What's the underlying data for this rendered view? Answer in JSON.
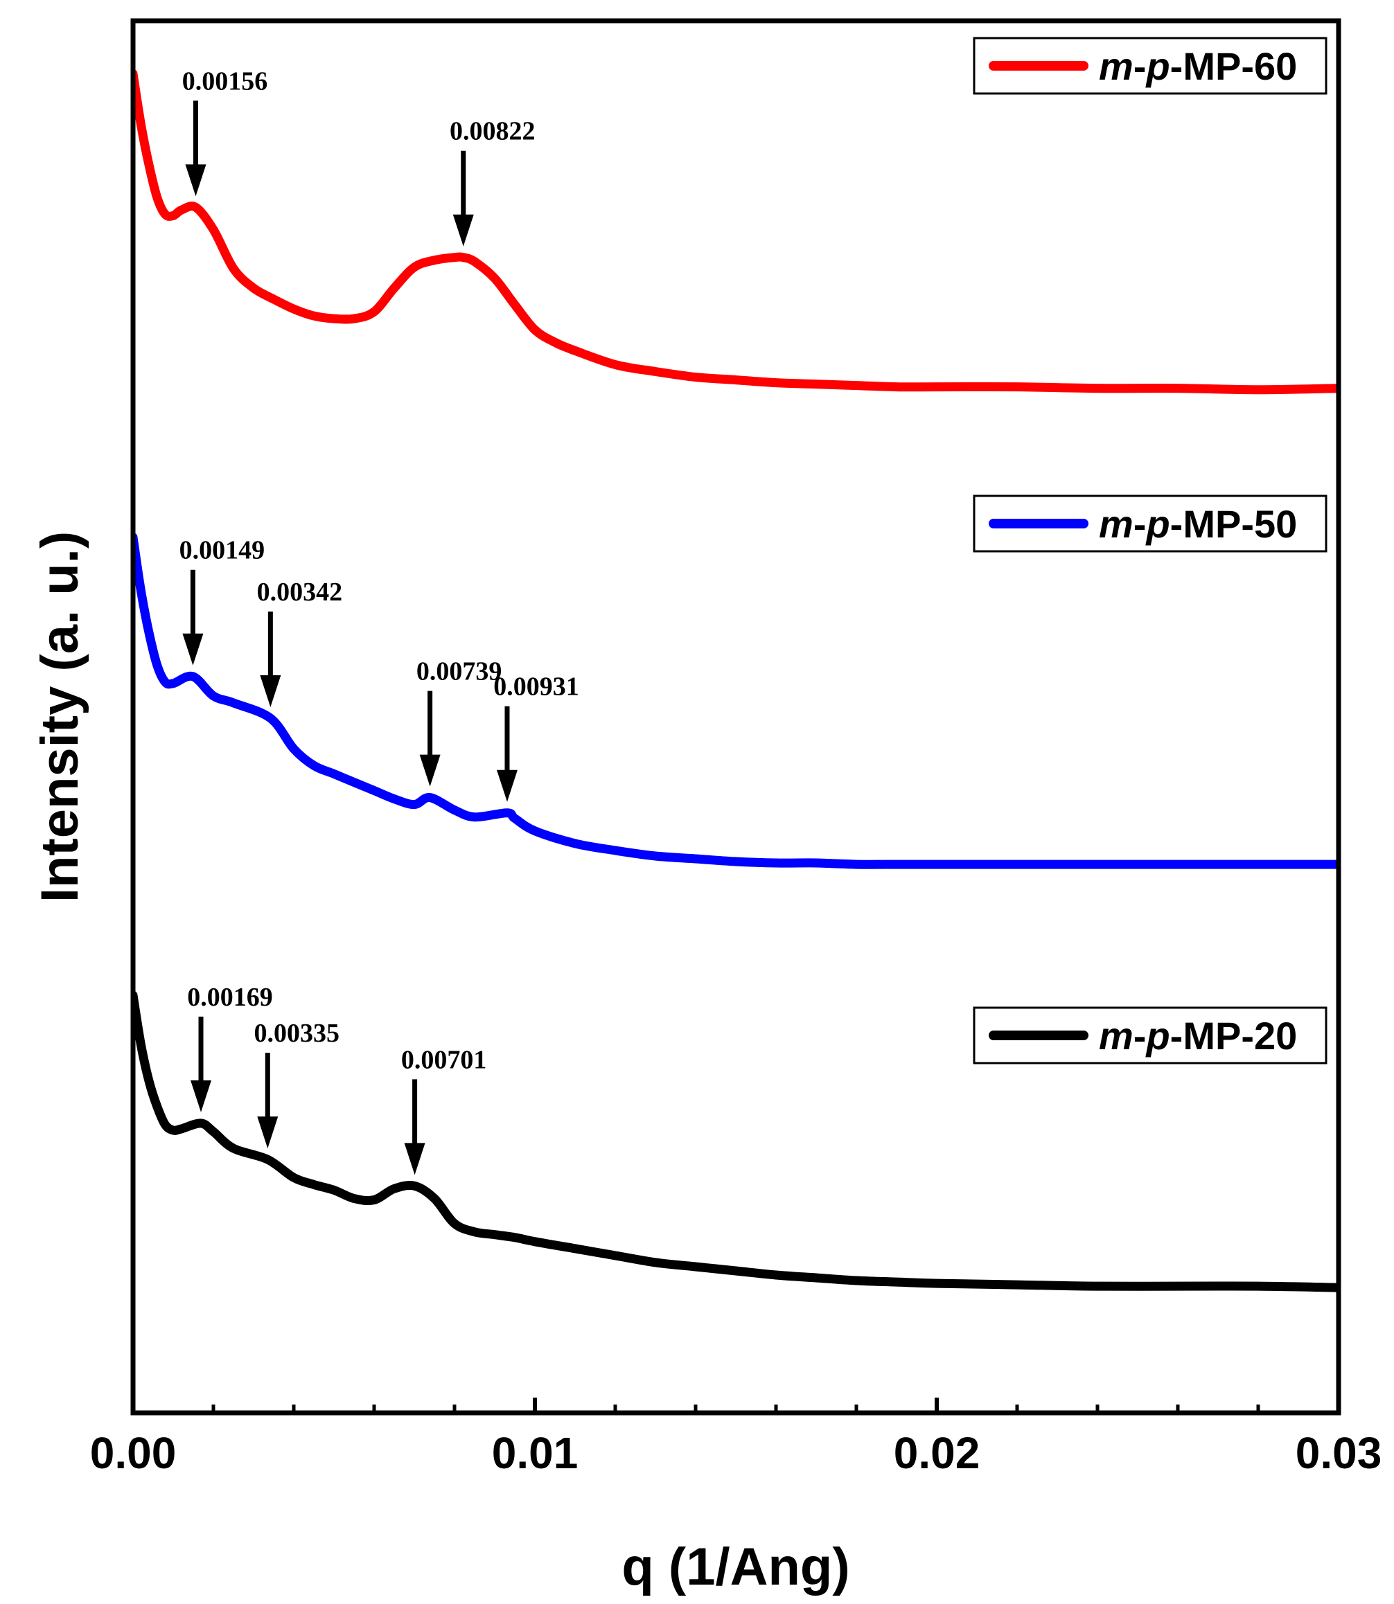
{
  "chart_data": {
    "type": "line",
    "title": "",
    "xlabel": "q (1/Ang)",
    "ylabel": "Intensity (a. u.)",
    "xlim": [
      0,
      0.03
    ],
    "ylim": [
      0,
      100
    ],
    "x_ticks": [
      "0.00",
      "0.01",
      "0.02",
      "0.03"
    ],
    "grid": false,
    "legend_position": "top-right (one per curve)",
    "series": [
      {
        "name": "m-p-MP-60",
        "legend": {
          "prefix_italic_1": "m",
          "dash_1": "-",
          "prefix_italic_2": "p",
          "suffix": "-MP-60"
        },
        "color": "#ff0000",
        "x": [
          0,
          0.0002,
          0.0004,
          0.0006,
          0.0008,
          0.001,
          0.0012,
          0.00156,
          0.002,
          0.0025,
          0.003,
          0.0035,
          0.004,
          0.0045,
          0.005,
          0.0055,
          0.006,
          0.0065,
          0.007,
          0.0075,
          0.008,
          0.00822,
          0.0085,
          0.009,
          0.0095,
          0.01,
          0.0105,
          0.011,
          0.012,
          0.013,
          0.014,
          0.015,
          0.016,
          0.017,
          0.018,
          0.019,
          0.02,
          0.022,
          0.024,
          0.026,
          0.028,
          0.03
        ],
        "y": [
          96.2,
          92.5,
          89.6,
          87.3,
          86.1,
          86.0,
          86.4,
          86.6,
          85.0,
          82.2,
          80.8,
          80.0,
          79.3,
          78.8,
          78.6,
          78.6,
          79.1,
          80.8,
          82.3,
          82.8,
          83.0,
          83.0,
          82.7,
          81.5,
          79.6,
          77.8,
          76.9,
          76.3,
          75.3,
          74.8,
          74.4,
          74.2,
          74.0,
          73.9,
          73.8,
          73.7,
          73.7,
          73.7,
          73.6,
          73.6,
          73.5,
          73.6
        ]
      },
      {
        "name": "m-p-MP-50",
        "legend": {
          "prefix_italic_1": "m",
          "dash_1": "-",
          "prefix_italic_2": "p",
          "suffix": "-MP-50"
        },
        "color": "#0000ff",
        "x": [
          0,
          0.0002,
          0.0004,
          0.0006,
          0.0008,
          0.001,
          0.00149,
          0.002,
          0.0025,
          0.00342,
          0.004,
          0.0045,
          0.005,
          0.0055,
          0.006,
          0.0065,
          0.007,
          0.00739,
          0.008,
          0.0085,
          0.00931,
          0.0095,
          0.01,
          0.011,
          0.012,
          0.013,
          0.014,
          0.015,
          0.016,
          0.017,
          0.018,
          0.019,
          0.02,
          0.022,
          0.024,
          0.026,
          0.028,
          0.03
        ],
        "y": [
          62.9,
          59.0,
          56.0,
          53.7,
          52.5,
          52.4,
          52.9,
          51.5,
          51.0,
          49.9,
          47.7,
          46.5,
          45.9,
          45.3,
          44.7,
          44.1,
          43.7,
          44.2,
          43.3,
          42.8,
          43.1,
          42.7,
          41.8,
          40.9,
          40.4,
          40.0,
          39.8,
          39.6,
          39.5,
          39.5,
          39.4,
          39.4,
          39.4,
          39.4,
          39.4,
          39.4,
          39.4,
          39.4
        ]
      },
      {
        "name": "m-p-MP-20",
        "legend": {
          "prefix_italic_1": "m",
          "dash_1": "-",
          "prefix_italic_2": "p",
          "suffix": "-MP-20"
        },
        "color": "#000000",
        "x": [
          0,
          0.0002,
          0.0004,
          0.0006,
          0.0008,
          0.001,
          0.0012,
          0.00169,
          0.002,
          0.0025,
          0.00335,
          0.004,
          0.0045,
          0.005,
          0.0055,
          0.006,
          0.0065,
          0.00701,
          0.0075,
          0.008,
          0.0085,
          0.009,
          0.0095,
          0.01,
          0.011,
          0.012,
          0.013,
          0.014,
          0.015,
          0.016,
          0.017,
          0.018,
          0.019,
          0.02,
          0.022,
          0.024,
          0.026,
          0.028,
          0.03
        ],
        "y": [
          30.0,
          26.4,
          23.8,
          22.0,
          20.7,
          20.3,
          20.4,
          20.8,
          20.2,
          19.0,
          18.2,
          16.9,
          16.4,
          16.0,
          15.4,
          15.3,
          16.1,
          16.3,
          15.4,
          13.6,
          13.0,
          12.8,
          12.6,
          12.3,
          11.8,
          11.3,
          10.8,
          10.5,
          10.2,
          9.9,
          9.7,
          9.5,
          9.4,
          9.3,
          9.2,
          9.1,
          9.1,
          9.1,
          9.0
        ]
      }
    ],
    "annotations": [
      {
        "series": 0,
        "q": 0.00156,
        "label": "0.00156"
      },
      {
        "series": 0,
        "q": 0.00822,
        "label": "0.00822"
      },
      {
        "series": 1,
        "q": 0.00149,
        "label": "0.00149"
      },
      {
        "series": 1,
        "q": 0.00342,
        "label": "0.00342"
      },
      {
        "series": 1,
        "q": 0.00739,
        "label": "0.00739"
      },
      {
        "series": 1,
        "q": 0.00931,
        "label": "0.00931"
      },
      {
        "series": 2,
        "q": 0.00169,
        "label": "0.00169"
      },
      {
        "series": 2,
        "q": 0.00335,
        "label": "0.00335"
      },
      {
        "series": 2,
        "q": 0.00701,
        "label": "0.00701"
      }
    ]
  }
}
